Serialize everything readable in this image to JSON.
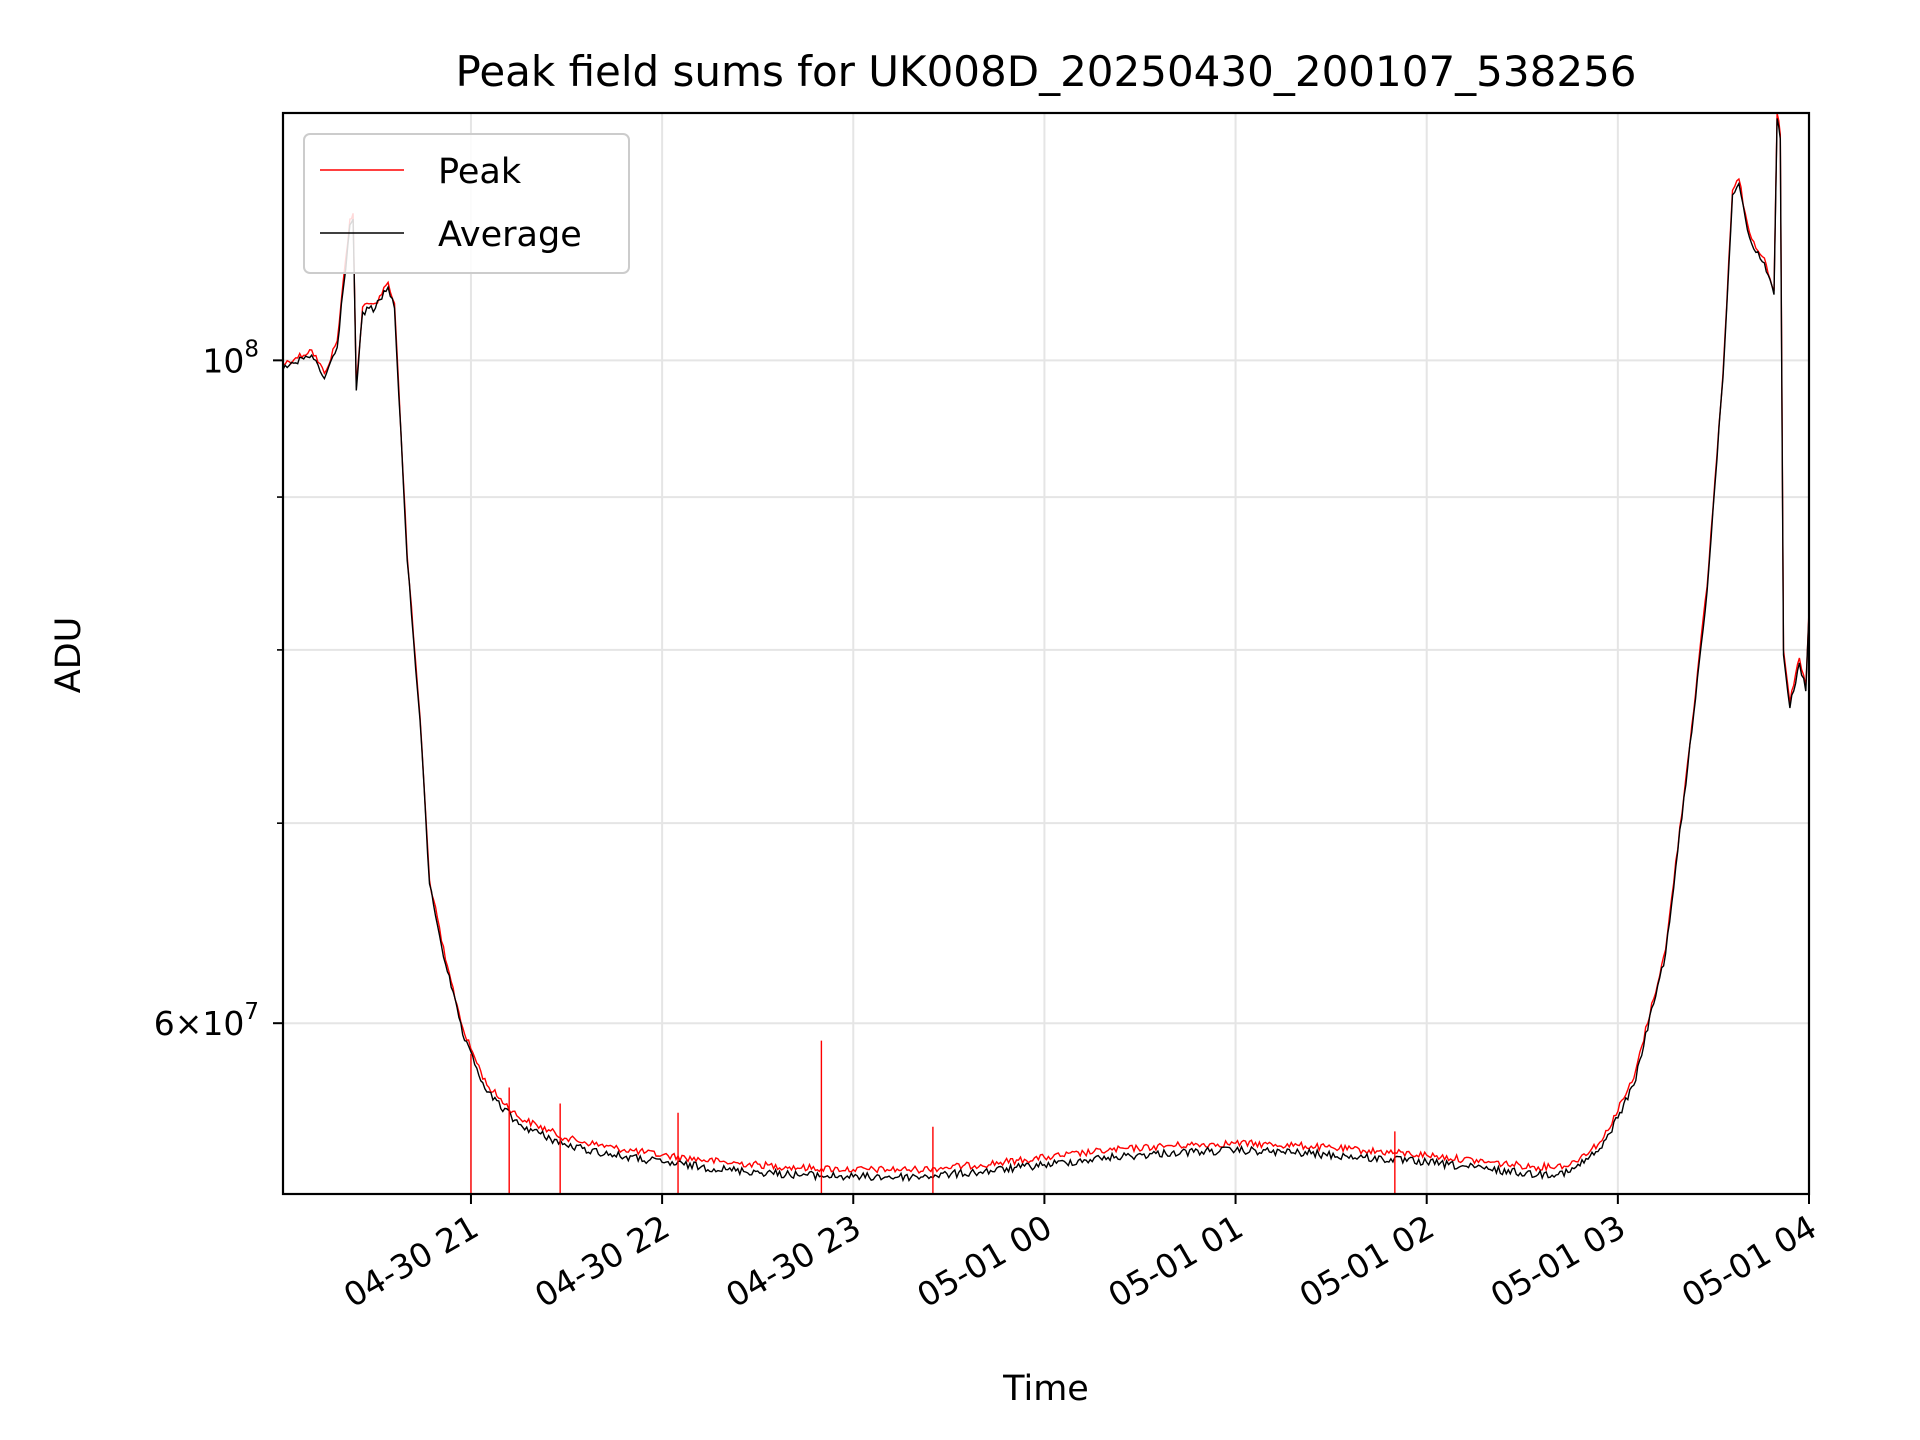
{
  "chart_data": {
    "type": "line",
    "title": "Peak field sums for UK008D_20250430_200107_538256",
    "xlabel": "Time",
    "ylabel": "ADU",
    "x_axis": {
      "type": "time",
      "range": [
        "2025-04-30 20:01",
        "2025-05-01 04:00"
      ],
      "ticks": [
        {
          "t": "2025-04-30 21:00",
          "label": "04-30 21"
        },
        {
          "t": "2025-04-30 22:00",
          "label": "04-30 22"
        },
        {
          "t": "2025-04-30 23:00",
          "label": "04-30 23"
        },
        {
          "t": "2025-05-01 00:00",
          "label": "05-01 00"
        },
        {
          "t": "2025-05-01 01:00",
          "label": "05-01 01"
        },
        {
          "t": "2025-05-01 02:00",
          "label": "05-01 02"
        },
        {
          "t": "2025-05-01 03:00",
          "label": "05-01 03"
        },
        {
          "t": "2025-05-01 04:00",
          "label": "05-01 04"
        }
      ]
    },
    "y_axis": {
      "scale": "log",
      "range": [
        52600000,
        121000000
      ],
      "major_ticks": [
        {
          "value": 100000000,
          "base": "10",
          "exp": "8",
          "mant": ""
        },
        {
          "value": 60000000,
          "base": "10",
          "exp": "7",
          "mant": "6"
        }
      ],
      "minor_ticks": [
        70000000,
        80000000,
        90000000
      ]
    },
    "grid": true,
    "legend": {
      "position": "top-left"
    },
    "series": [
      {
        "name": "Peak",
        "color": "#ff0000",
        "points": [
          [
            "2025-04-30 20:01",
            99700000
          ],
          [
            "2025-04-30 20:05",
            100200000
          ],
          [
            "2025-04-30 20:10",
            100800000
          ],
          [
            "2025-04-30 20:14",
            99000000
          ],
          [
            "2025-04-30 20:18",
            101500000
          ],
          [
            "2025-04-30 20:22",
            111500000
          ],
          [
            "2025-04-30 20:23",
            112000000
          ],
          [
            "2025-04-30 20:24",
            98000000
          ],
          [
            "2025-04-30 20:26",
            104200000
          ],
          [
            "2025-04-30 20:30",
            104500000
          ],
          [
            "2025-04-30 20:34",
            106200000
          ],
          [
            "2025-04-30 20:36",
            104500000
          ],
          [
            "2025-04-30 20:40",
            86000000
          ],
          [
            "2025-04-30 20:44",
            76000000
          ],
          [
            "2025-04-30 20:47",
            67000000
          ],
          [
            "2025-04-30 20:52",
            63000000
          ],
          [
            "2025-04-30 20:58",
            59500000
          ],
          [
            "2025-04-30 21:05",
            57200000
          ],
          [
            "2025-04-30 21:15",
            55800000
          ],
          [
            "2025-04-30 21:30",
            54900000
          ],
          [
            "2025-04-30 21:45",
            54500000
          ],
          [
            "2025-04-30 22:00",
            54200000
          ],
          [
            "2025-04-30 22:20",
            53900000
          ],
          [
            "2025-04-30 22:40",
            53700000
          ],
          [
            "2025-04-30 23:00",
            53600000
          ],
          [
            "2025-04-30 23:20",
            53600000
          ],
          [
            "2025-04-30 23:40",
            53800000
          ],
          [
            "2025-05-01 00:00",
            54100000
          ],
          [
            "2025-05-01 00:20",
            54400000
          ],
          [
            "2025-05-01 00:40",
            54600000
          ],
          [
            "2025-05-01 01:00",
            54700000
          ],
          [
            "2025-05-01 01:20",
            54600000
          ],
          [
            "2025-05-01 01:40",
            54400000
          ],
          [
            "2025-05-01 02:00",
            54200000
          ],
          [
            "2025-05-01 02:20",
            53900000
          ],
          [
            "2025-05-01 02:35",
            53700000
          ],
          [
            "2025-05-01 02:45",
            53800000
          ],
          [
            "2025-05-01 02:55",
            54800000
          ],
          [
            "2025-05-01 03:05",
            57500000
          ],
          [
            "2025-05-01 03:15",
            63500000
          ],
          [
            "2025-05-01 03:22",
            73500000
          ],
          [
            "2025-05-01 03:28",
            84000000
          ],
          [
            "2025-05-01 03:33",
            99000000
          ],
          [
            "2025-05-01 03:36",
            114000000
          ],
          [
            "2025-05-01 03:38",
            115000000
          ],
          [
            "2025-05-01 03:40",
            112000000
          ],
          [
            "2025-05-01 03:42",
            109800000
          ],
          [
            "2025-05-01 03:46",
            108200000
          ],
          [
            "2025-05-01 03:49",
            105500000
          ],
          [
            "2025-05-01 03:50",
            121000000
          ],
          [
            "2025-05-01 03:51",
            119000000
          ],
          [
            "2025-05-01 03:52",
            80000000
          ],
          [
            "2025-05-01 03:54",
            76800000
          ],
          [
            "2025-05-01 03:57",
            79500000
          ],
          [
            "2025-05-01 03:59",
            77800000
          ],
          [
            "2025-05-01 04:00",
            82500000
          ]
        ]
      },
      {
        "name": "Average",
        "color": "#000000",
        "points": [
          [
            "2025-04-30 20:01",
            99300000
          ],
          [
            "2025-04-30 20:05",
            99800000
          ],
          [
            "2025-04-30 20:10",
            100400000
          ],
          [
            "2025-04-30 20:14",
            98600000
          ],
          [
            "2025-04-30 20:18",
            101000000
          ],
          [
            "2025-04-30 20:22",
            111000000
          ],
          [
            "2025-04-30 20:23",
            111500000
          ],
          [
            "2025-04-30 20:24",
            97700000
          ],
          [
            "2025-04-30 20:26",
            103800000
          ],
          [
            "2025-04-30 20:30",
            104100000
          ],
          [
            "2025-04-30 20:34",
            105800000
          ],
          [
            "2025-04-30 20:36",
            104100000
          ],
          [
            "2025-04-30 20:40",
            85700000
          ],
          [
            "2025-04-30 20:44",
            75800000
          ],
          [
            "2025-04-30 20:47",
            66800000
          ],
          [
            "2025-04-30 20:52",
            62800000
          ],
          [
            "2025-04-30 20:58",
            59200000
          ],
          [
            "2025-04-30 21:05",
            56900000
          ],
          [
            "2025-04-30 21:15",
            55500000
          ],
          [
            "2025-04-30 21:30",
            54600000
          ],
          [
            "2025-04-30 21:45",
            54200000
          ],
          [
            "2025-04-30 22:00",
            53900000
          ],
          [
            "2025-04-30 22:20",
            53600000
          ],
          [
            "2025-04-30 22:40",
            53400000
          ],
          [
            "2025-04-30 23:00",
            53300000
          ],
          [
            "2025-04-30 23:20",
            53300000
          ],
          [
            "2025-04-30 23:40",
            53500000
          ],
          [
            "2025-05-01 00:00",
            53800000
          ],
          [
            "2025-05-01 00:20",
            54100000
          ],
          [
            "2025-05-01 00:40",
            54300000
          ],
          [
            "2025-05-01 01:00",
            54400000
          ],
          [
            "2025-05-01 01:20",
            54300000
          ],
          [
            "2025-05-01 01:40",
            54100000
          ],
          [
            "2025-05-01 02:00",
            53900000
          ],
          [
            "2025-05-01 02:20",
            53600000
          ],
          [
            "2025-05-01 02:35",
            53400000
          ],
          [
            "2025-05-01 02:45",
            53500000
          ],
          [
            "2025-05-01 02:55",
            54500000
          ],
          [
            "2025-05-01 03:05",
            57200000
          ],
          [
            "2025-05-01 03:15",
            63300000
          ],
          [
            "2025-05-01 03:22",
            73200000
          ],
          [
            "2025-05-01 03:28",
            83700000
          ],
          [
            "2025-05-01 03:33",
            98700000
          ],
          [
            "2025-05-01 03:36",
            113600000
          ],
          [
            "2025-05-01 03:38",
            114600000
          ],
          [
            "2025-05-01 03:40",
            111600000
          ],
          [
            "2025-05-01 03:42",
            109400000
          ],
          [
            "2025-05-01 03:46",
            107800000
          ],
          [
            "2025-05-01 03:49",
            105200000
          ],
          [
            "2025-05-01 03:50",
            120500000
          ],
          [
            "2025-05-01 03:51",
            118600000
          ],
          [
            "2025-05-01 03:52",
            79700000
          ],
          [
            "2025-05-01 03:54",
            76500000
          ],
          [
            "2025-05-01 03:57",
            79200000
          ],
          [
            "2025-05-01 03:59",
            77500000
          ],
          [
            "2025-05-01 04:00",
            82200000
          ]
        ]
      }
    ],
    "peak_spikes": [
      {
        "t": "2025-04-30 21:00",
        "value": 58600000
      },
      {
        "t": "2025-04-30 21:12",
        "value": 57100000
      },
      {
        "t": "2025-04-30 21:28",
        "value": 56400000
      },
      {
        "t": "2025-04-30 22:05",
        "value": 56000000
      },
      {
        "t": "2025-04-30 22:50",
        "value": 59200000
      },
      {
        "t": "2025-04-30 23:25",
        "value": 55400000
      },
      {
        "t": "2025-05-01 01:50",
        "value": 55200000
      }
    ]
  }
}
